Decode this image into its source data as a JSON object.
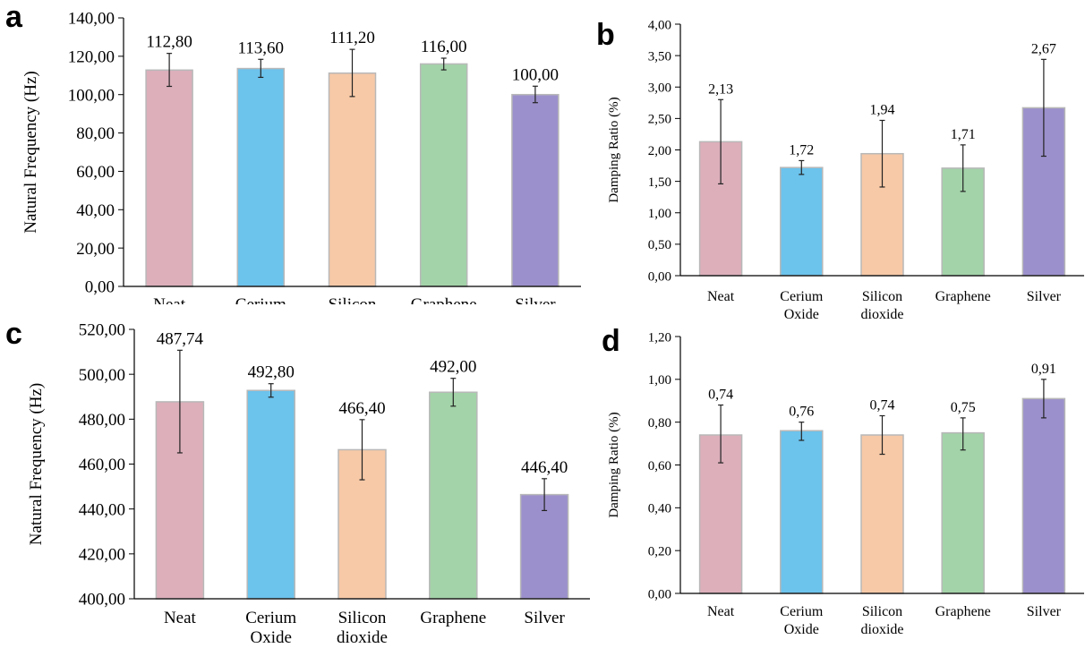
{
  "chart_data": [
    {
      "panel": "a",
      "type": "bar",
      "categories": [
        [
          "Neat"
        ],
        [
          "Cerium"
        ],
        [
          "Silicon"
        ],
        [
          "Graphene"
        ],
        [
          "Silver"
        ]
      ],
      "values": [
        112.8,
        113.6,
        111.2,
        116.0,
        100.0
      ],
      "value_labels": [
        "112,80",
        "113,60",
        "111,20",
        "116,00",
        "100,00"
      ],
      "error_bars": [
        [
          104.3,
          121.5
        ],
        [
          109.0,
          118.4
        ],
        [
          99.0,
          123.6
        ],
        [
          112.9,
          119.0
        ],
        [
          95.8,
          104.4
        ]
      ],
      "ylim": [
        0,
        140
      ],
      "yticks": [
        "0,00",
        "20,00",
        "40,00",
        "60,00",
        "80,00",
        "100,00",
        "120,00",
        "140,00"
      ],
      "ylabel": "Natural Frequency (Hz)",
      "xlabel": "",
      "title": "",
      "grid": false
    },
    {
      "panel": "b",
      "type": "bar",
      "categories": [
        [
          "Neat"
        ],
        [
          "Cerium",
          "Oxide"
        ],
        [
          "Silicon",
          "dioxide"
        ],
        [
          "Graphene"
        ],
        [
          "Silver"
        ]
      ],
      "values": [
        2.13,
        1.72,
        1.94,
        1.71,
        2.67
      ],
      "value_labels": [
        "2,13",
        "1,72",
        "1,94",
        "1,71",
        "2,67"
      ],
      "error_bars": [
        [
          1.46,
          2.8
        ],
        [
          1.61,
          1.83
        ],
        [
          1.41,
          2.47
        ],
        [
          1.34,
          2.08
        ],
        [
          1.9,
          3.44
        ]
      ],
      "ylim": [
        0,
        4
      ],
      "yticks": [
        "0,00",
        "0,50",
        "1,00",
        "1,50",
        "2,00",
        "2,50",
        "3,00",
        "3,50",
        "4,00"
      ],
      "ylabel": "Damping Ratio (%)",
      "xlabel": "",
      "title": "",
      "grid": false
    },
    {
      "panel": "c",
      "type": "bar",
      "categories": [
        [
          "Neat"
        ],
        [
          "Cerium",
          "Oxide"
        ],
        [
          "Silicon",
          "dioxide"
        ],
        [
          "Graphene"
        ],
        [
          "Silver"
        ]
      ],
      "values": [
        487.74,
        492.8,
        466.4,
        492.0,
        446.4
      ],
      "value_labels": [
        "487,74",
        "492,80",
        "466,40",
        "492,00",
        "446,40"
      ],
      "error_bars": [
        [
          465.0,
          510.7
        ],
        [
          489.8,
          495.8
        ],
        [
          453.0,
          479.8
        ],
        [
          485.8,
          498.2
        ],
        [
          439.3,
          453.5
        ]
      ],
      "ylim": [
        400,
        520
      ],
      "yticks": [
        "400,00",
        "420,00",
        "440,00",
        "460,00",
        "480,00",
        "500,00",
        "520,00"
      ],
      "ylabel": "Natural Frequency (Hz)",
      "xlabel": "",
      "title": "",
      "grid": false
    },
    {
      "panel": "d",
      "type": "bar",
      "categories": [
        [
          "Neat"
        ],
        [
          "Cerium",
          "Oxide"
        ],
        [
          "Silicon",
          "dioxide"
        ],
        [
          "Graphene"
        ],
        [
          "Silver"
        ]
      ],
      "values": [
        0.74,
        0.76,
        0.74,
        0.75,
        0.91
      ],
      "value_labels": [
        "0,74",
        "0,76",
        "0,74",
        "0,75",
        "0,91"
      ],
      "error_bars": [
        [
          0.61,
          0.88
        ],
        [
          0.715,
          0.8
        ],
        [
          0.65,
          0.83
        ],
        [
          0.67,
          0.82
        ],
        [
          0.82,
          1.0
        ]
      ],
      "ylim": [
        0,
        1.2
      ],
      "yticks": [
        "0,00",
        "0,20",
        "0,40",
        "0,60",
        "0,80",
        "1,00",
        "1,20"
      ],
      "ylabel": "Damping Ratio (%)",
      "xlabel": "",
      "title": "",
      "grid": false
    }
  ],
  "panels": {
    "a": {
      "letter": "a"
    },
    "b": {
      "letter": "b"
    },
    "c": {
      "letter": "c"
    },
    "d": {
      "letter": "d"
    }
  },
  "colors": {
    "bars": [
      "#dcafbb",
      "#6cc3ec",
      "#f7c9a7",
      "#a3d3a9",
      "#9c90cc"
    ],
    "bar_edge": "#b8b8b8",
    "axis": "#000000",
    "error_bar": "#222222"
  }
}
